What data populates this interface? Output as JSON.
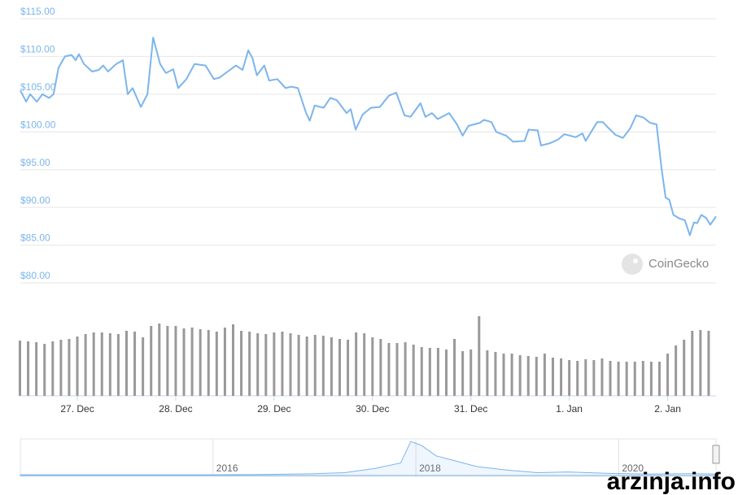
{
  "chart_data": [
    {
      "type": "line",
      "color": "#7cb5ec",
      "grid": true,
      "x": [
        -13.9,
        -12.5,
        -11.5,
        -9.9,
        -8.5,
        -6.9,
        -5.8,
        -4.6,
        -3,
        -1.4,
        -0.4,
        0.4,
        1.6,
        3.6,
        5.2,
        6.3,
        7.5,
        9.5,
        11.1,
        12.3,
        13.5,
        15.5,
        17.1,
        18.5,
        20.2,
        21.6,
        23.4,
        24.6,
        26.6,
        28.6,
        31.3,
        33.3,
        34.7,
        36.7,
        38.7,
        40.3,
        41.7,
        42.7,
        43.8,
        45.6,
        46.8,
        48.8,
        50.8,
        52.2,
        53.8,
        55.8,
        56.7,
        57.9,
        60.1,
        61.7,
        63.3,
        65.7,
        66.7,
        67.9,
        69.6,
        71.6,
        73.8,
        76,
        77.8,
        79.8,
        81.3,
        83.7,
        84.9,
        86.5,
        87.9,
        90.7,
        92.6,
        94,
        95.4,
        98.2,
        99.2,
        101,
        102.2,
        104.6,
        106.3,
        109.1,
        110.1,
        112.3,
        113.1,
        115.3,
        117.3,
        118.8,
        121.6,
        123.2,
        124,
        126.8,
        128.2,
        129.4,
        131.3,
        133.1,
        134.9,
        136.3,
        138.1,
        139.7,
        141.3,
        142.5,
        143.5,
        144.4,
        145.4,
        147,
        148.2,
        149.4,
        150.4,
        151.2,
        152.2,
        153.4,
        154.4,
        155.8
      ],
      "values": [
        105.5,
        104,
        105,
        104,
        105,
        104.5,
        105,
        108.5,
        110,
        110.2,
        109.5,
        110.3,
        109,
        108,
        108.2,
        108.8,
        108,
        109,
        109.5,
        105,
        105.8,
        103.3,
        105,
        112.5,
        109,
        107.8,
        108.3,
        105.8,
        107,
        109,
        108.8,
        107,
        107.2,
        108,
        108.8,
        108.2,
        110.8,
        109.8,
        107.5,
        108.8,
        106.8,
        107,
        105.8,
        106,
        105.8,
        102.5,
        101.5,
        103.5,
        103.2,
        104.5,
        104.2,
        102.5,
        103,
        100.3,
        102.3,
        103.2,
        103.3,
        104.8,
        105.2,
        102.2,
        102,
        103.8,
        102,
        102.5,
        101.7,
        102.5,
        101,
        99.5,
        100.8,
        101.2,
        101.6,
        101.3,
        100,
        99.5,
        98.7,
        98.8,
        100.3,
        100.2,
        98.2,
        98.5,
        99,
        99.7,
        99.3,
        99.8,
        98.8,
        101.3,
        101.3,
        100.6,
        99.6,
        99.2,
        100.5,
        102.2,
        101.9,
        101.2,
        101,
        95.2,
        91.3,
        91,
        89,
        88.5,
        88.3,
        86.3,
        88,
        87.9,
        89,
        88.6,
        87.7,
        88.8
      ],
      "xlim": [
        -13.9,
        155.8
      ],
      "ylim": [
        80,
        115
      ],
      "yticks": [
        {
          "value": 80,
          "label": "$80.00"
        },
        {
          "value": 85,
          "label": "$85.00"
        },
        {
          "value": 90,
          "label": "$90.00"
        },
        {
          "value": 95,
          "label": "$95.00"
        },
        {
          "value": 100,
          "label": "$100.00"
        },
        {
          "value": 105,
          "label": "$105.00"
        },
        {
          "value": 110,
          "label": "$110.00"
        },
        {
          "value": 115,
          "label": "$115.00"
        }
      ]
    },
    {
      "type": "bar",
      "color": "#999999",
      "x": [
        -14,
        -12,
        -10,
        -8,
        -6,
        -4,
        -2,
        0,
        2,
        4,
        6,
        8,
        10,
        12,
        14,
        16,
        18,
        20,
        22,
        24,
        26,
        28,
        30,
        32,
        34,
        36,
        38,
        40,
        42,
        44,
        46,
        48,
        50,
        52,
        54,
        56,
        58,
        60,
        62,
        64,
        66,
        68,
        70,
        72,
        74,
        76,
        78,
        80,
        82,
        84,
        86,
        88,
        90,
        92,
        94,
        96,
        98,
        100,
        102,
        104,
        106,
        108,
        110,
        112,
        114,
        116,
        118,
        120,
        122,
        124,
        126,
        128,
        130,
        132,
        134,
        136,
        138,
        140,
        142,
        144,
        146,
        148,
        150,
        152,
        154
      ],
      "values": [
        68,
        67,
        66,
        64,
        67,
        69,
        70,
        73,
        76,
        78,
        78,
        77,
        76,
        80,
        79,
        72,
        86,
        89,
        86,
        86,
        83,
        84,
        82,
        81,
        79,
        84,
        88,
        80,
        79,
        77,
        76,
        78,
        79,
        77,
        75,
        73,
        75,
        74,
        72,
        70,
        69,
        78,
        77,
        72,
        70,
        65,
        65,
        66,
        63,
        60,
        59,
        59,
        57,
        70,
        55,
        57,
        98,
        56,
        54,
        52,
        52,
        50,
        49,
        48,
        52,
        47,
        46,
        44,
        43,
        45,
        44,
        46,
        43,
        42,
        42,
        42,
        43,
        42,
        42,
        52,
        62,
        69,
        80,
        81,
        80
      ],
      "xlim": [
        -13.9,
        155.8
      ],
      "ylim": [
        0,
        100
      ],
      "xticks": [
        {
          "value": 0,
          "label": "27. Dec"
        },
        {
          "value": 24,
          "label": "28. Dec"
        },
        {
          "value": 48,
          "label": "29. Dec"
        },
        {
          "value": 72,
          "label": "30. Dec"
        },
        {
          "value": 96,
          "label": "31. Dec"
        },
        {
          "value": 120,
          "label": "1. Jan"
        },
        {
          "value": 144,
          "label": "2. Jan"
        }
      ]
    },
    {
      "type": "area",
      "color": "#7cb5ec",
      "x": [
        2014.1,
        2015,
        2016,
        2016.5,
        2017,
        2017.3,
        2017.6,
        2017.85,
        2017.95,
        2018.05,
        2018.2,
        2018.4,
        2018.6,
        2018.9,
        2019.2,
        2019.5,
        2019.9,
        2020.3,
        2020.7,
        2020.96
      ],
      "values": [
        2,
        2,
        2,
        3,
        5,
        8,
        20,
        35,
        95,
        85,
        55,
        40,
        25,
        15,
        8,
        10,
        6,
        4,
        5,
        4
      ],
      "xlim": [
        2014.1,
        2020.96
      ],
      "ylim": [
        0,
        100
      ],
      "xticks": [
        2016,
        2018,
        2020
      ]
    }
  ],
  "brand": "CoinGecko",
  "watermark": "arzinja.info"
}
